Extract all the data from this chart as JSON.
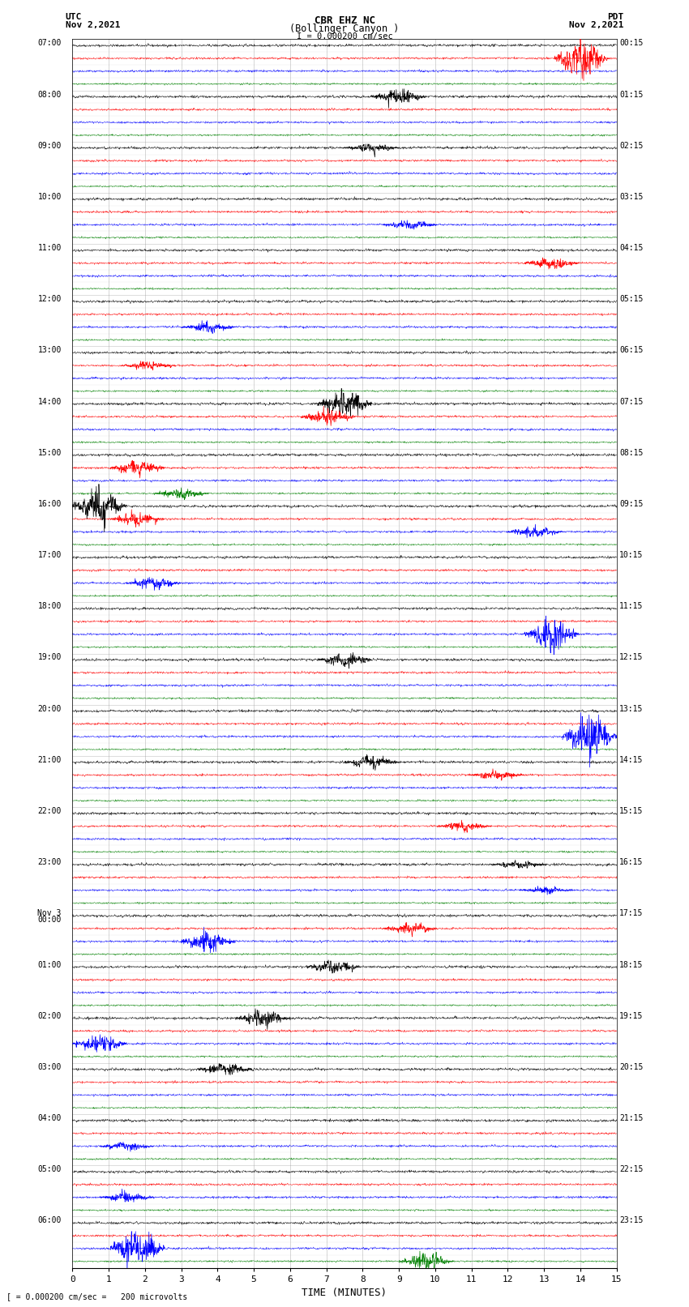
{
  "title_line1": "CBR EHZ NC",
  "title_line2": "(Bollinger Canyon )",
  "scale_label": "I = 0.000200 cm/sec",
  "bottom_label": "[ = 0.000200 cm/sec =   200 microvolts",
  "xlabel": "TIME (MINUTES)",
  "left_times": [
    "07:00",
    "08:00",
    "09:00",
    "10:00",
    "11:00",
    "12:00",
    "13:00",
    "14:00",
    "15:00",
    "16:00",
    "17:00",
    "18:00",
    "19:00",
    "20:00",
    "21:00",
    "22:00",
    "23:00",
    "Nov 3\n00:00",
    "01:00",
    "02:00",
    "03:00",
    "04:00",
    "05:00",
    "06:00"
  ],
  "right_times": [
    "00:15",
    "01:15",
    "02:15",
    "03:15",
    "04:15",
    "05:15",
    "06:15",
    "07:15",
    "08:15",
    "09:15",
    "10:15",
    "11:15",
    "12:15",
    "13:15",
    "14:15",
    "15:15",
    "16:15",
    "17:15",
    "18:15",
    "19:15",
    "20:15",
    "21:15",
    "22:15",
    "23:15"
  ],
  "n_hours": 24,
  "n_traces_per_hour": 4,
  "colors": [
    "black",
    "red",
    "blue",
    "green"
  ],
  "background_color": "white",
  "grid_color": "#999999",
  "xmin": 0,
  "xmax": 15,
  "xticks": [
    0,
    1,
    2,
    3,
    4,
    5,
    6,
    7,
    8,
    9,
    10,
    11,
    12,
    13,
    14,
    15
  ]
}
